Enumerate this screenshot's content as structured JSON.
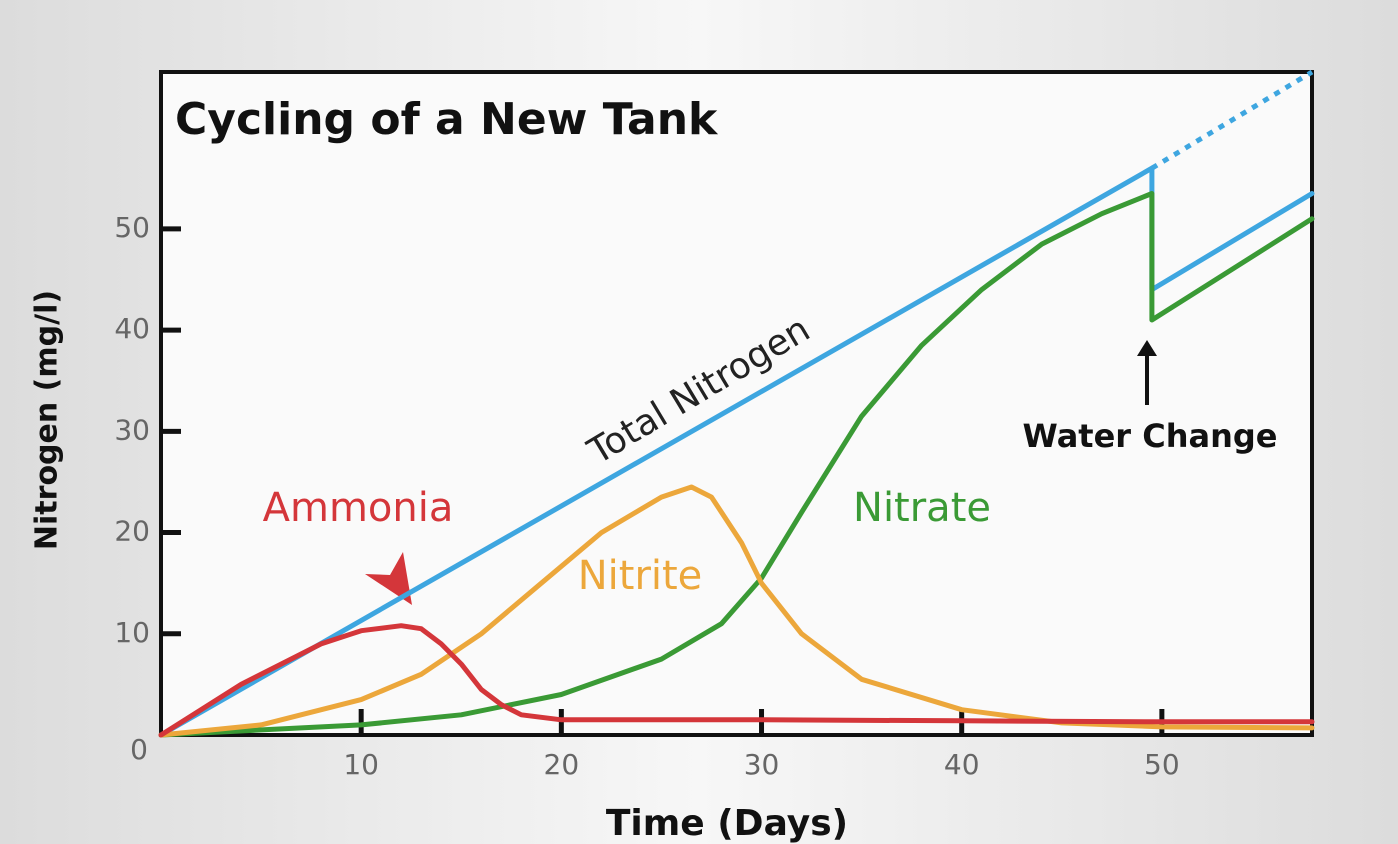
{
  "chart_data": {
    "type": "line",
    "title": "Cycling of a New Tank",
    "y_label": "Nitrogen (mg/l)",
    "x_label": "Time (Days)",
    "xlim": [
      0,
      57.5
    ],
    "ylim": [
      0,
      65.5
    ],
    "xticks": [
      10,
      20,
      30,
      40,
      50
    ],
    "yticks": [
      0,
      10,
      20,
      30,
      40,
      50
    ],
    "annotation": "Water Change",
    "series": [
      {
        "name": "Total Nitrogen",
        "color": "#3ea6e0",
        "x": [
          0,
          49.5,
          49.5,
          57.5
        ],
        "values": [
          0,
          56,
          44,
          53.5
        ],
        "projection": {
          "x": [
            49.5,
            57.5
          ],
          "values": [
            56,
            65.5
          ]
        }
      },
      {
        "name": "Ammonia",
        "color": "#d4363a",
        "x": [
          0,
          2,
          4,
          6,
          8,
          10,
          12,
          13,
          14,
          15,
          16,
          17,
          18,
          20,
          30,
          40,
          50,
          57.5
        ],
        "values": [
          0,
          2.5,
          5,
          7,
          9,
          10.3,
          10.8,
          10.5,
          9,
          7,
          4.5,
          3,
          2,
          1.5,
          1.5,
          1.4,
          1.3,
          1.3
        ]
      },
      {
        "name": "Nitrite",
        "color": "#eca73b",
        "x": [
          0,
          5,
          10,
          13,
          16,
          19,
          22,
          25,
          26.5,
          27.5,
          29,
          30,
          32,
          35,
          40,
          45,
          50,
          57.5
        ],
        "values": [
          0,
          1,
          3.5,
          6,
          10,
          15,
          20,
          23.5,
          24.5,
          23.5,
          19,
          15,
          10,
          5.5,
          2.5,
          1.2,
          0.8,
          0.7
        ]
      },
      {
        "name": "Nitrate",
        "color": "#3a9a35",
        "x": [
          0,
          10,
          15,
          20,
          25,
          28,
          30,
          32,
          35,
          38,
          41,
          44,
          47,
          49.5,
          49.5,
          57.5
        ],
        "values": [
          0,
          1,
          2,
          4,
          7.5,
          11,
          15.5,
          22,
          31.5,
          38.5,
          44,
          48.5,
          51.5,
          53.5,
          41,
          51
        ]
      }
    ]
  }
}
